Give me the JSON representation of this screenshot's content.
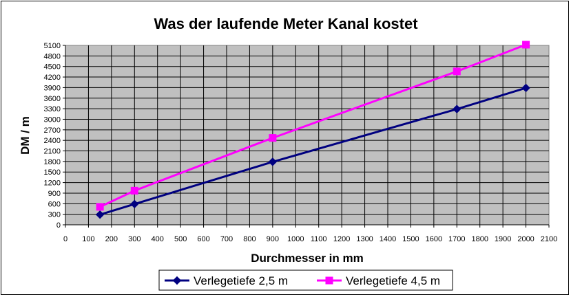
{
  "chart_data": {
    "type": "line",
    "title": "Was der laufende Meter Kanal kostet",
    "xlabel": "Durchmesser in mm",
    "ylabel": "DM / m",
    "xlim": [
      0,
      2100
    ],
    "ylim": [
      0,
      5100
    ],
    "x_ticks": [
      "0",
      "100",
      "200",
      "300",
      "400",
      "500",
      "600",
      "700",
      "800",
      "900",
      "1000",
      "1100",
      "1200",
      "1300",
      "1400",
      "1500",
      "1600",
      "1700",
      "1800",
      "1900",
      "2000",
      "2100"
    ],
    "y_ticks": [
      "0",
      "300",
      "600",
      "900",
      "1200",
      "1500",
      "1800",
      "2100",
      "2400",
      "2700",
      "3000",
      "3300",
      "3600",
      "3900",
      "4200",
      "4500",
      "4800",
      "5100"
    ],
    "grid": true,
    "legend_position": "bottom",
    "plot_background": "#c0c0c0",
    "series": [
      {
        "name": "Verlegetiefe 2,5 m",
        "color": "#000080",
        "marker": "diamond",
        "x": [
          150,
          300,
          900,
          1700,
          2000
        ],
        "y": [
          290,
          590,
          1790,
          3290,
          3890
        ]
      },
      {
        "name": "Verlegetiefe 4,5 m",
        "color": "#ff00ff",
        "marker": "square",
        "x": [
          150,
          300,
          900,
          1700,
          2000
        ],
        "y": [
          510,
          970,
          2470,
          4360,
          5120
        ]
      }
    ]
  }
}
